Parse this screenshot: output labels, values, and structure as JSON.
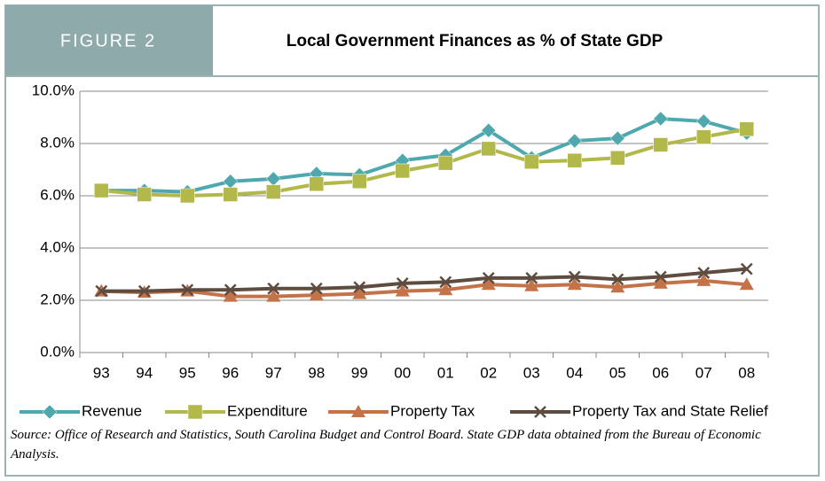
{
  "chart_data": {
    "type": "line",
    "figure_label": "FIGURE 2",
    "title": "Local Government Finances as % of State GDP",
    "categories": [
      "93",
      "94",
      "95",
      "96",
      "97",
      "98",
      "99",
      "00",
      "01",
      "02",
      "03",
      "04",
      "05",
      "06",
      "07",
      "08"
    ],
    "series": [
      {
        "name": "Revenue",
        "color": "#4fa8ad",
        "marker": "diamond",
        "values": [
          6.2,
          6.2,
          6.15,
          6.55,
          6.65,
          6.85,
          6.8,
          7.35,
          7.55,
          8.5,
          7.45,
          8.1,
          8.2,
          8.95,
          8.85,
          8.4
        ]
      },
      {
        "name": "Expenditure",
        "color": "#b2b84a",
        "marker": "square",
        "values": [
          6.2,
          6.05,
          6.0,
          6.05,
          6.15,
          6.45,
          6.55,
          6.95,
          7.25,
          7.8,
          7.3,
          7.35,
          7.45,
          7.95,
          8.25,
          8.55
        ]
      },
      {
        "name": "Property Tax",
        "color": "#c47349",
        "marker": "triangle",
        "values": [
          2.35,
          2.3,
          2.35,
          2.15,
          2.15,
          2.2,
          2.25,
          2.35,
          2.4,
          2.6,
          2.55,
          2.6,
          2.5,
          2.65,
          2.75,
          2.6
        ]
      },
      {
        "name": "Property Tax and State Relief",
        "color": "#5e4c40",
        "marker": "x",
        "values": [
          2.35,
          2.35,
          2.4,
          2.4,
          2.45,
          2.45,
          2.5,
          2.65,
          2.7,
          2.85,
          2.85,
          2.9,
          2.8,
          2.9,
          3.05,
          3.2
        ]
      }
    ],
    "ylim": [
      0,
      10
    ],
    "yticks": [
      {
        "value": 0,
        "label": "0.0%"
      },
      {
        "value": 2,
        "label": "2.0%"
      },
      {
        "value": 4,
        "label": "4.0%"
      },
      {
        "value": 6,
        "label": "6.0%"
      },
      {
        "value": 8,
        "label": "8.0%"
      },
      {
        "value": 10,
        "label": "10.0%"
      }
    ],
    "grid": true,
    "legend": "bottom",
    "source": "Source: Office of Research and Statistics, South Carolina Budget and Control Board. State GDP data obtained from the Bureau of Economic Analysis."
  }
}
